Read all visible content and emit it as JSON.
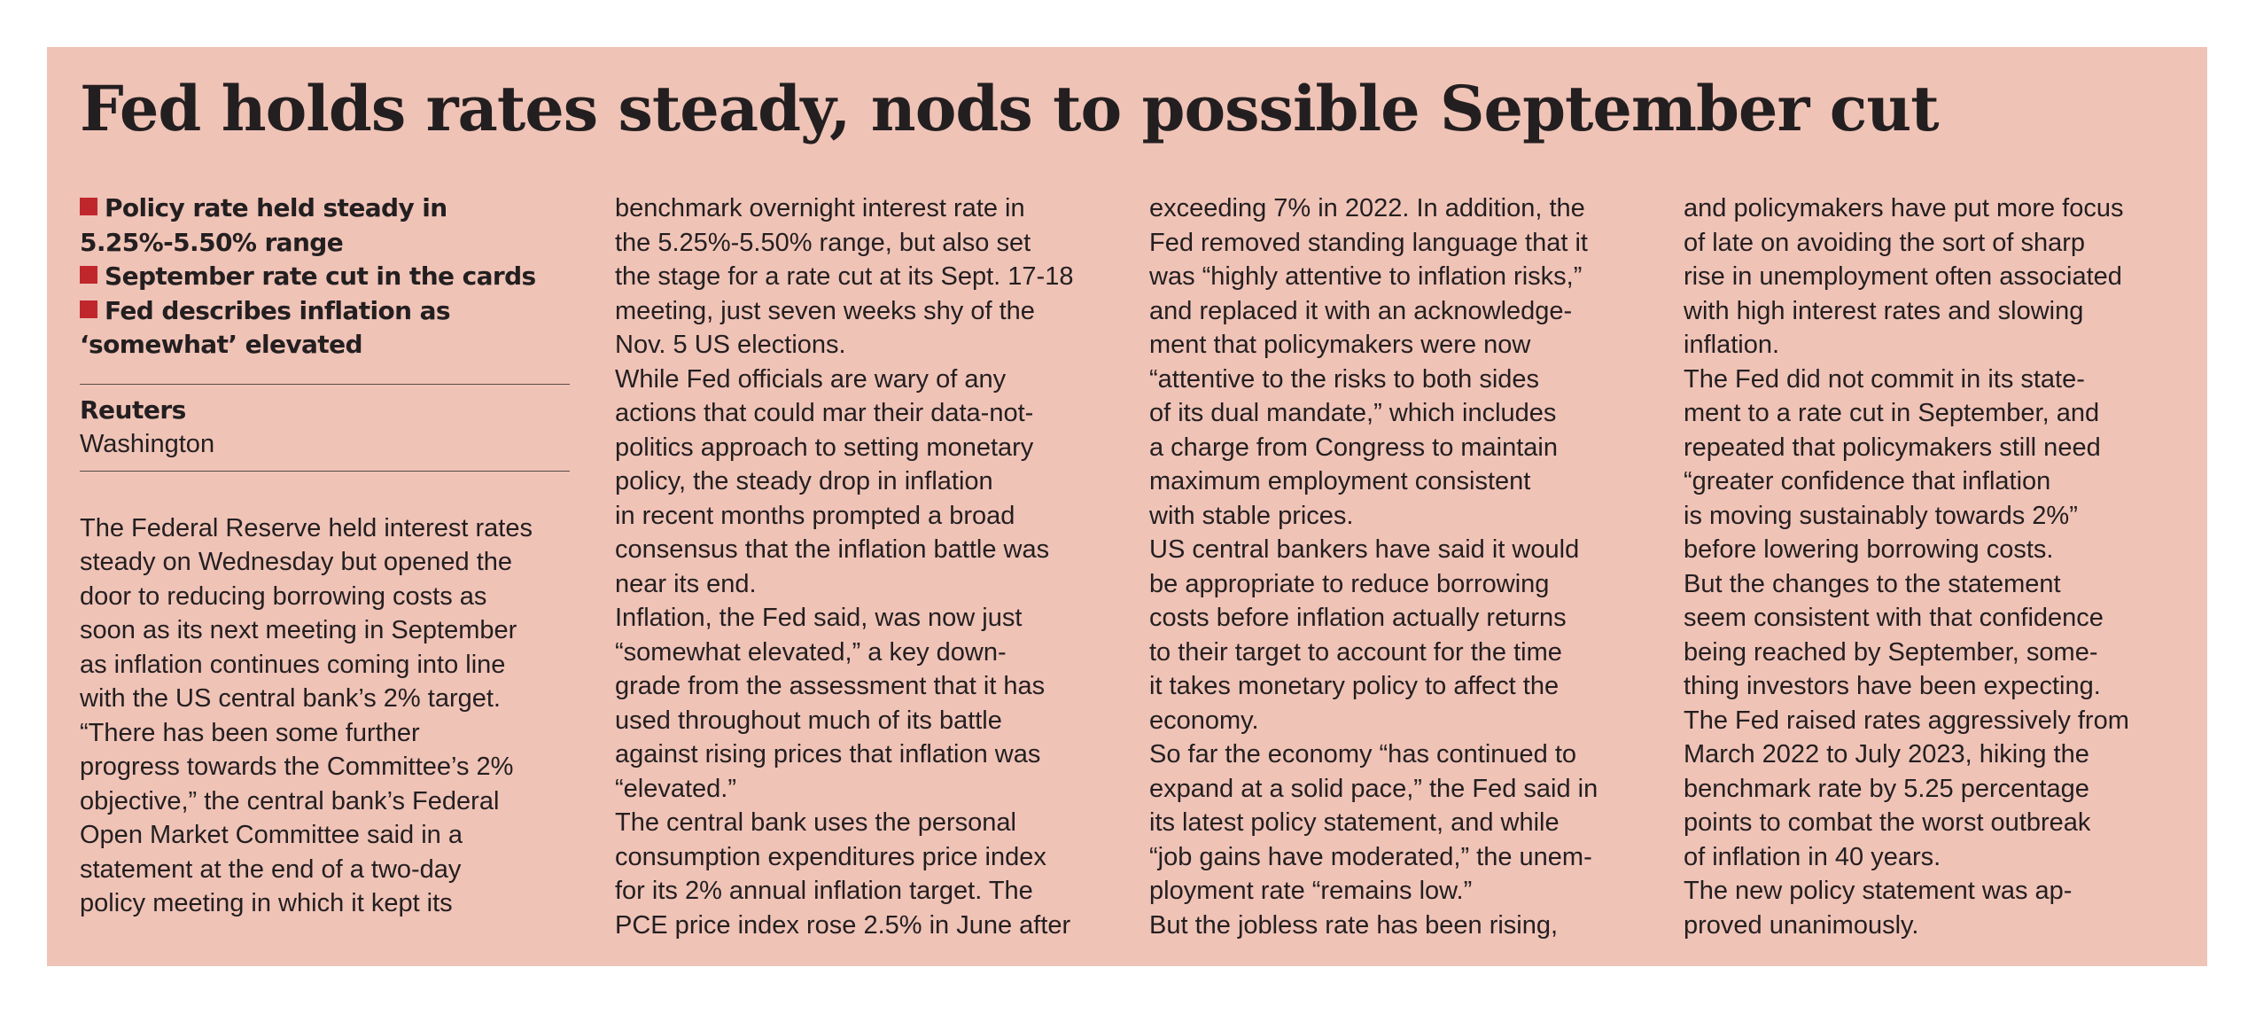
{
  "headline": "Fed holds rates steady, nods to possible September cut",
  "bullets": [
    [
      "Policy rate held steady in",
      "5.25%-5.50% range"
    ],
    [
      "September rate cut in the cards"
    ],
    [
      "Fed describes inflation as",
      "‘somewhat’ elevated"
    ]
  ],
  "byline": "Reuters",
  "dateline": "Washington",
  "columns": [
    [
      "The Federal Reserve held interest rates",
      "steady on Wednesday but opened the",
      "door to reducing borrowing costs as",
      "soon as its next meeting in September",
      "as inflation continues coming into line",
      "with the US central bank’s 2% target.",
      "“There has been some further",
      "progress towards the Committee’s 2%",
      "objective,” the central bank’s Federal",
      "Open Market Committee said in a",
      "statement at the end of a two-day",
      "policy meeting in which it kept its"
    ],
    [
      "benchmark overnight interest rate in",
      "the 5.25%-5.50% range, but also set",
      "the stage for a rate cut at its Sept. 17-18",
      "meeting, just seven weeks shy of the",
      "Nov. 5 US elections.",
      "While Fed officials are wary of any",
      "actions that could mar their data-not-",
      "politics approach to setting monetary",
      "policy, the steady drop in inflation",
      "in recent months prompted a broad",
      "consensus that the inflation battle was",
      "near its end.",
      "Inflation, the Fed said, was now just",
      "“somewhat elevated,” a key down-",
      "grade from the assessment that it has",
      "used throughout much of its battle",
      "against rising prices that inflation was",
      "“elevated.”",
      "The central bank uses the personal",
      "consumption expenditures price index",
      "for its 2% annual inflation target. The",
      "PCE price index rose 2.5% in June after"
    ],
    [
      "exceeding 7% in 2022. In addition, the",
      "Fed removed standing language that it",
      "was “highly attentive to inflation risks,”",
      "and replaced it with an acknowledge-",
      "ment that policymakers were now",
      "“attentive to the risks to both sides",
      "of its dual mandate,” which includes",
      "a charge from Congress to maintain",
      "maximum employment consistent",
      "with stable prices.",
      "US central bankers have said it would",
      "be appropriate to reduce borrowing",
      "costs before inflation actually returns",
      "to their target to account for the time",
      "it takes monetary policy to affect the",
      "economy.",
      "So far the economy “has continued to",
      "expand at a solid pace,” the Fed said in",
      "its latest policy statement, and while",
      "“job gains have moderated,” the unem-",
      "ployment rate “remains low.”",
      "But the jobless rate has been rising,"
    ],
    [
      "and policymakers have put more focus",
      "of late on avoiding the sort of sharp",
      "rise in unemployment often associated",
      "with high interest rates and slowing",
      "inflation.",
      "The Fed did not commit in its state-",
      "ment to a rate cut in September, and",
      "repeated that policymakers still need",
      "“greater confidence that inflation",
      "is moving sustainably towards 2%”",
      "before lowering borrowing costs.",
      "But the changes to the statement",
      "seem consistent with that confidence",
      "being reached by September, some-",
      "thing investors have been expecting.",
      "The Fed raised rates aggressively from",
      "March 2022 to July 2023, hiking the",
      "benchmark rate by 5.25 percentage",
      "points to combat the worst outbreak",
      "of inflation in 40 years.",
      "The new policy statement was ap-",
      "proved unanimously."
    ]
  ],
  "colors": {
    "panel_background": "#f0c3b7",
    "bullet_marker": "#c0272d",
    "text": "#231f20"
  }
}
